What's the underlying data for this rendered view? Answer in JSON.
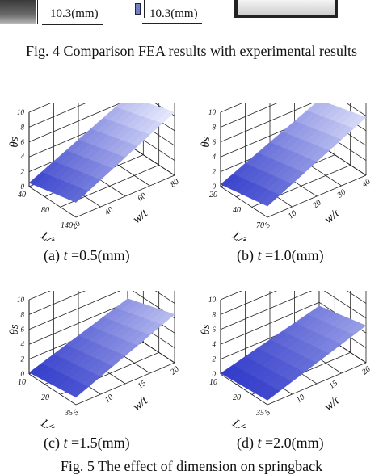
{
  "top_strip": {
    "dim_left": "10.3(mm)",
    "dim_right": "10.3(mm)"
  },
  "fig4_caption": "Fig. 4 Comparison FEA results with experimental results",
  "fig5_caption": "Fig. 5 The effect of dimension on springback",
  "axis_labels": {
    "z": "θs",
    "x": "L/t",
    "y": "w/t"
  },
  "colors": {
    "surface_light": "#e3e6fb",
    "surface_dark": "#2c36c8",
    "grid": "#222222"
  },
  "plots": [
    {
      "caption_prefix": "(a) ",
      "caption_t": "t",
      "caption_value": " =0.5(mm)",
      "z_ticks": [
        "10",
        "8",
        "6",
        "4",
        "2",
        "0"
      ],
      "x_ticks": [
        "40",
        "80",
        "140"
      ],
      "y_ticks": [
        "20",
        "40",
        "60",
        "80"
      ],
      "chart_data": {
        "type": "surface",
        "z_range": [
          0,
          10
        ],
        "corner_values": {
          "low_L_low_w": 0.5,
          "high_L_low_w": 2.0,
          "low_L_high_w": 6.5,
          "high_L_high_w": 8.5
        }
      }
    },
    {
      "caption_prefix": "(b) ",
      "caption_t": "t",
      "caption_value": " =1.0(mm)",
      "z_ticks": [
        "10",
        "8",
        "6",
        "4",
        "2",
        "0"
      ],
      "x_ticks": [
        "20",
        "40",
        "70"
      ],
      "y_ticks": [
        "5",
        "10",
        "20",
        "30",
        "40"
      ],
      "chart_data": {
        "type": "surface",
        "z_range": [
          0,
          10
        ],
        "corner_values": {
          "low_L_low_w": 0.3,
          "high_L_low_w": 1.5,
          "low_L_high_w": 6.0,
          "high_L_high_w": 7.8
        }
      }
    },
    {
      "caption_prefix": "(c) ",
      "caption_t": "t",
      "caption_value": " =1.5(mm)",
      "z_ticks": [
        "10",
        "8",
        "6",
        "4",
        "2",
        "0"
      ],
      "x_ticks": [
        "10",
        "20",
        "35"
      ],
      "y_ticks": [
        "5",
        "10",
        "15",
        "20"
      ],
      "chart_data": {
        "type": "surface",
        "z_range": [
          0,
          10
        ],
        "corner_values": {
          "low_L_low_w": 0.2,
          "high_L_low_w": 1.0,
          "low_L_high_w": 4.5,
          "high_L_high_w": 6.5
        }
      }
    },
    {
      "caption_prefix": "(d) ",
      "caption_t": "t",
      "caption_value": " =2.0(mm)",
      "z_ticks": [
        "10",
        "8",
        "6",
        "4",
        "2",
        "0"
      ],
      "x_ticks": [
        "10",
        "20",
        "35"
      ],
      "y_ticks": [
        "5",
        "10",
        "15",
        "20"
      ],
      "chart_data": {
        "type": "surface",
        "z_range": [
          0,
          10
        ],
        "corner_values": {
          "low_L_low_w": 0.1,
          "high_L_low_w": 0.6,
          "low_L_high_w": 3.5,
          "high_L_high_w": 5.0
        }
      }
    }
  ]
}
